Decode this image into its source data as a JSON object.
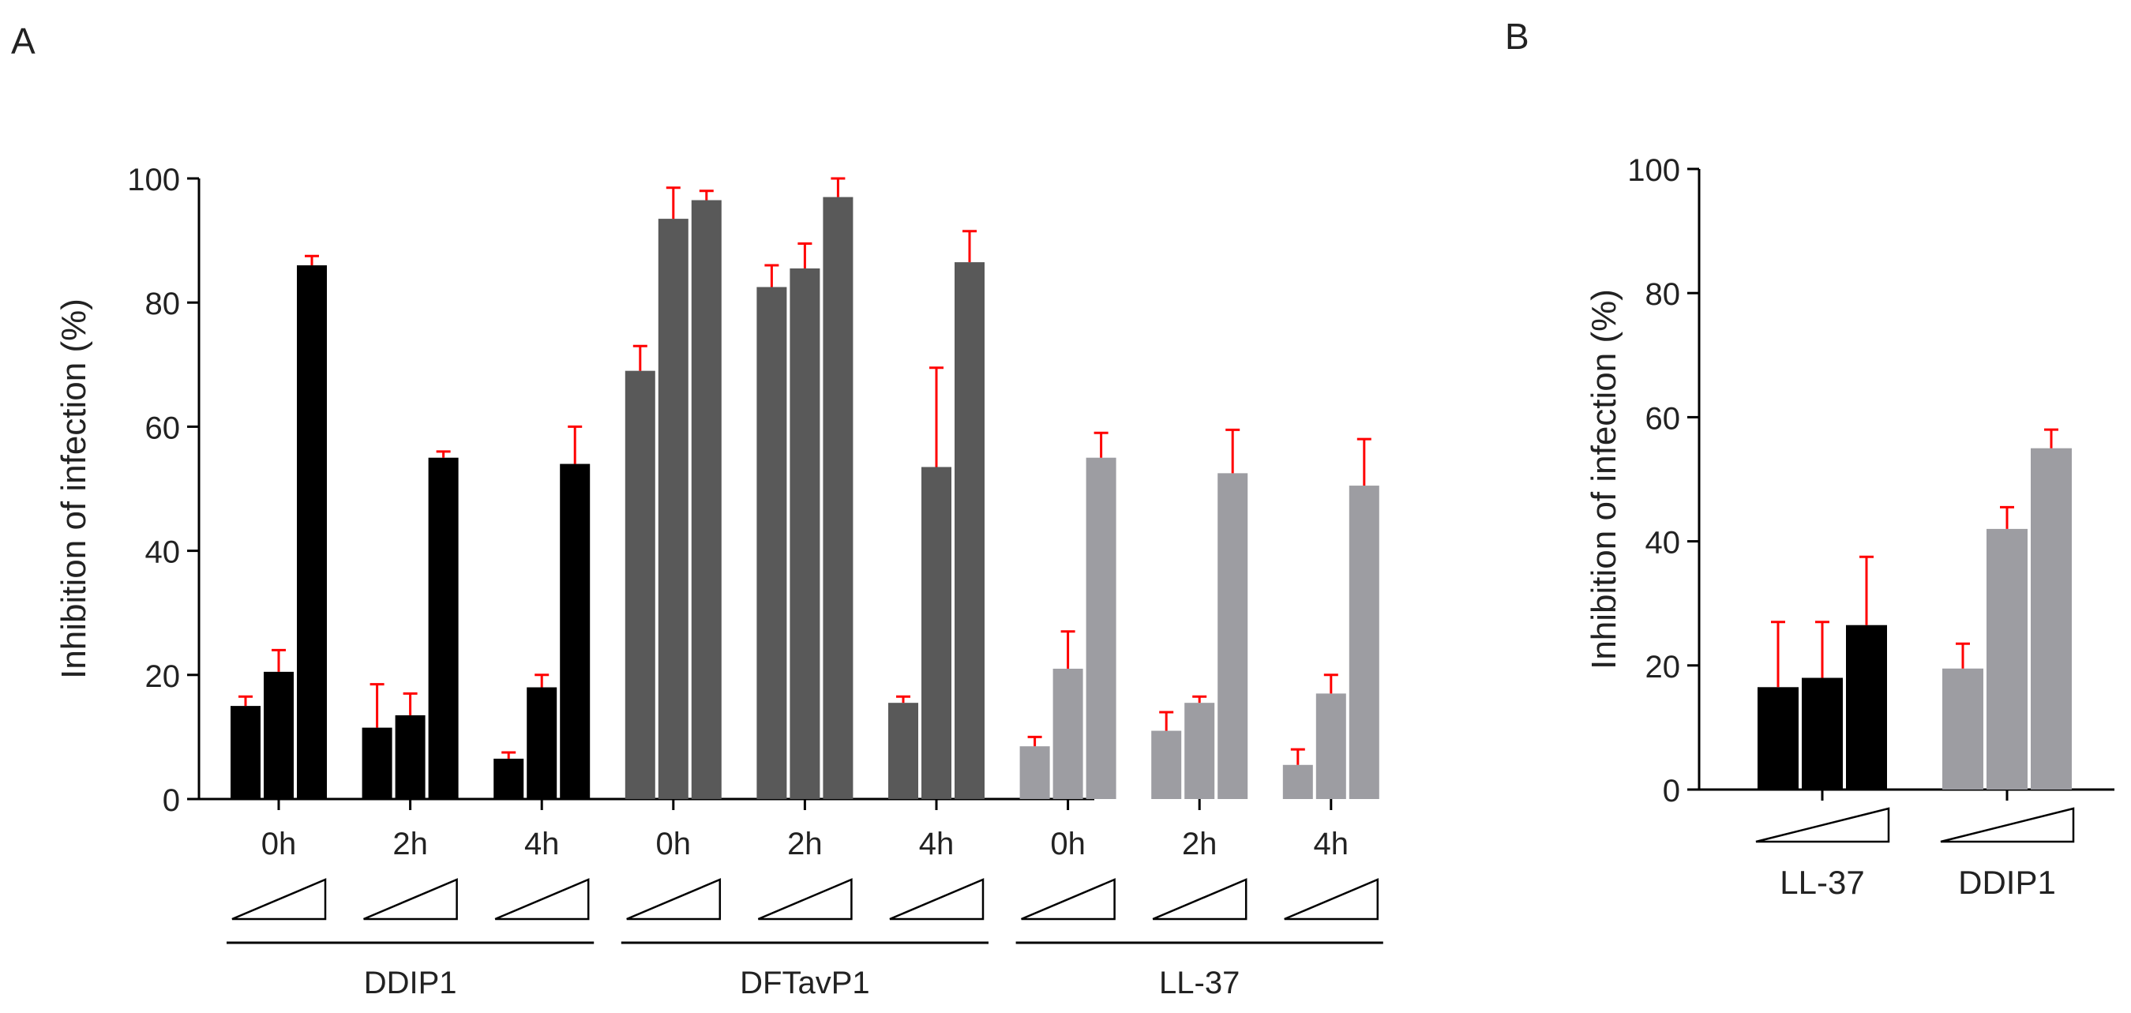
{
  "panels": {
    "a": {
      "letter": "A"
    },
    "b": {
      "letter": "B"
    }
  },
  "colors": {
    "ddip1": "#000000",
    "dftavp1": "#595959",
    "ll37": "#9d9da2",
    "error": "#ff0000",
    "axis": "#000000"
  },
  "chart_data": [
    {
      "panel": "A",
      "type": "bar",
      "ylabel": "Inhibition  of infection  (%)",
      "ylim": [
        0,
        100
      ],
      "yticks": [
        "0",
        "20",
        "40",
        "60",
        "80",
        "100"
      ],
      "categories": [
        "0h",
        "2h",
        "4h",
        "0h",
        "2h",
        "4h",
        "0h",
        "2h",
        "4h"
      ],
      "groups": [
        {
          "name": "DDIP1",
          "color_key": "ddip1",
          "values": [
            [
              15,
              20.5,
              86
            ],
            [
              11.5,
              13.5,
              55
            ],
            [
              6.5,
              18,
              54
            ]
          ],
          "errors": [
            [
              1.5,
              3.5,
              1.5
            ],
            [
              7,
              3.5,
              1
            ],
            [
              1,
              2,
              6
            ]
          ]
        },
        {
          "name": "DFTavP1",
          "color_key": "dftavp1",
          "values": [
            [
              69,
              93.5,
              96.5
            ],
            [
              82.5,
              85.5,
              97
            ],
            [
              15.5,
              53.5,
              86.5
            ]
          ],
          "errors": [
            [
              4,
              5,
              1.5
            ],
            [
              3.5,
              4,
              3
            ],
            [
              1,
              16,
              5
            ]
          ]
        },
        {
          "name": "LL-37",
          "color_key": "ll37",
          "values": [
            [
              8.5,
              21,
              55
            ],
            [
              11,
              15.5,
              52.5
            ],
            [
              5.5,
              17,
              50.5
            ]
          ],
          "errors": [
            [
              1.5,
              6,
              4
            ],
            [
              3,
              1,
              7
            ],
            [
              2.5,
              3,
              7.5
            ]
          ]
        }
      ]
    },
    {
      "panel": "B",
      "type": "bar",
      "ylabel": "Inhibition  of infection  (%)",
      "ylim": [
        0,
        100
      ],
      "yticks": [
        "0",
        "20",
        "40",
        "60",
        "80",
        "100"
      ],
      "groups": [
        {
          "name": "LL-37",
          "color_key": "ddip1",
          "values": [
            16.5,
            18,
            26.5
          ],
          "errors": [
            10.5,
            9,
            11
          ]
        },
        {
          "name": "DDIP1",
          "color_key": "ll37",
          "values": [
            19.5,
            42,
            55
          ],
          "errors": [
            4,
            3.5,
            3
          ]
        }
      ]
    }
  ]
}
